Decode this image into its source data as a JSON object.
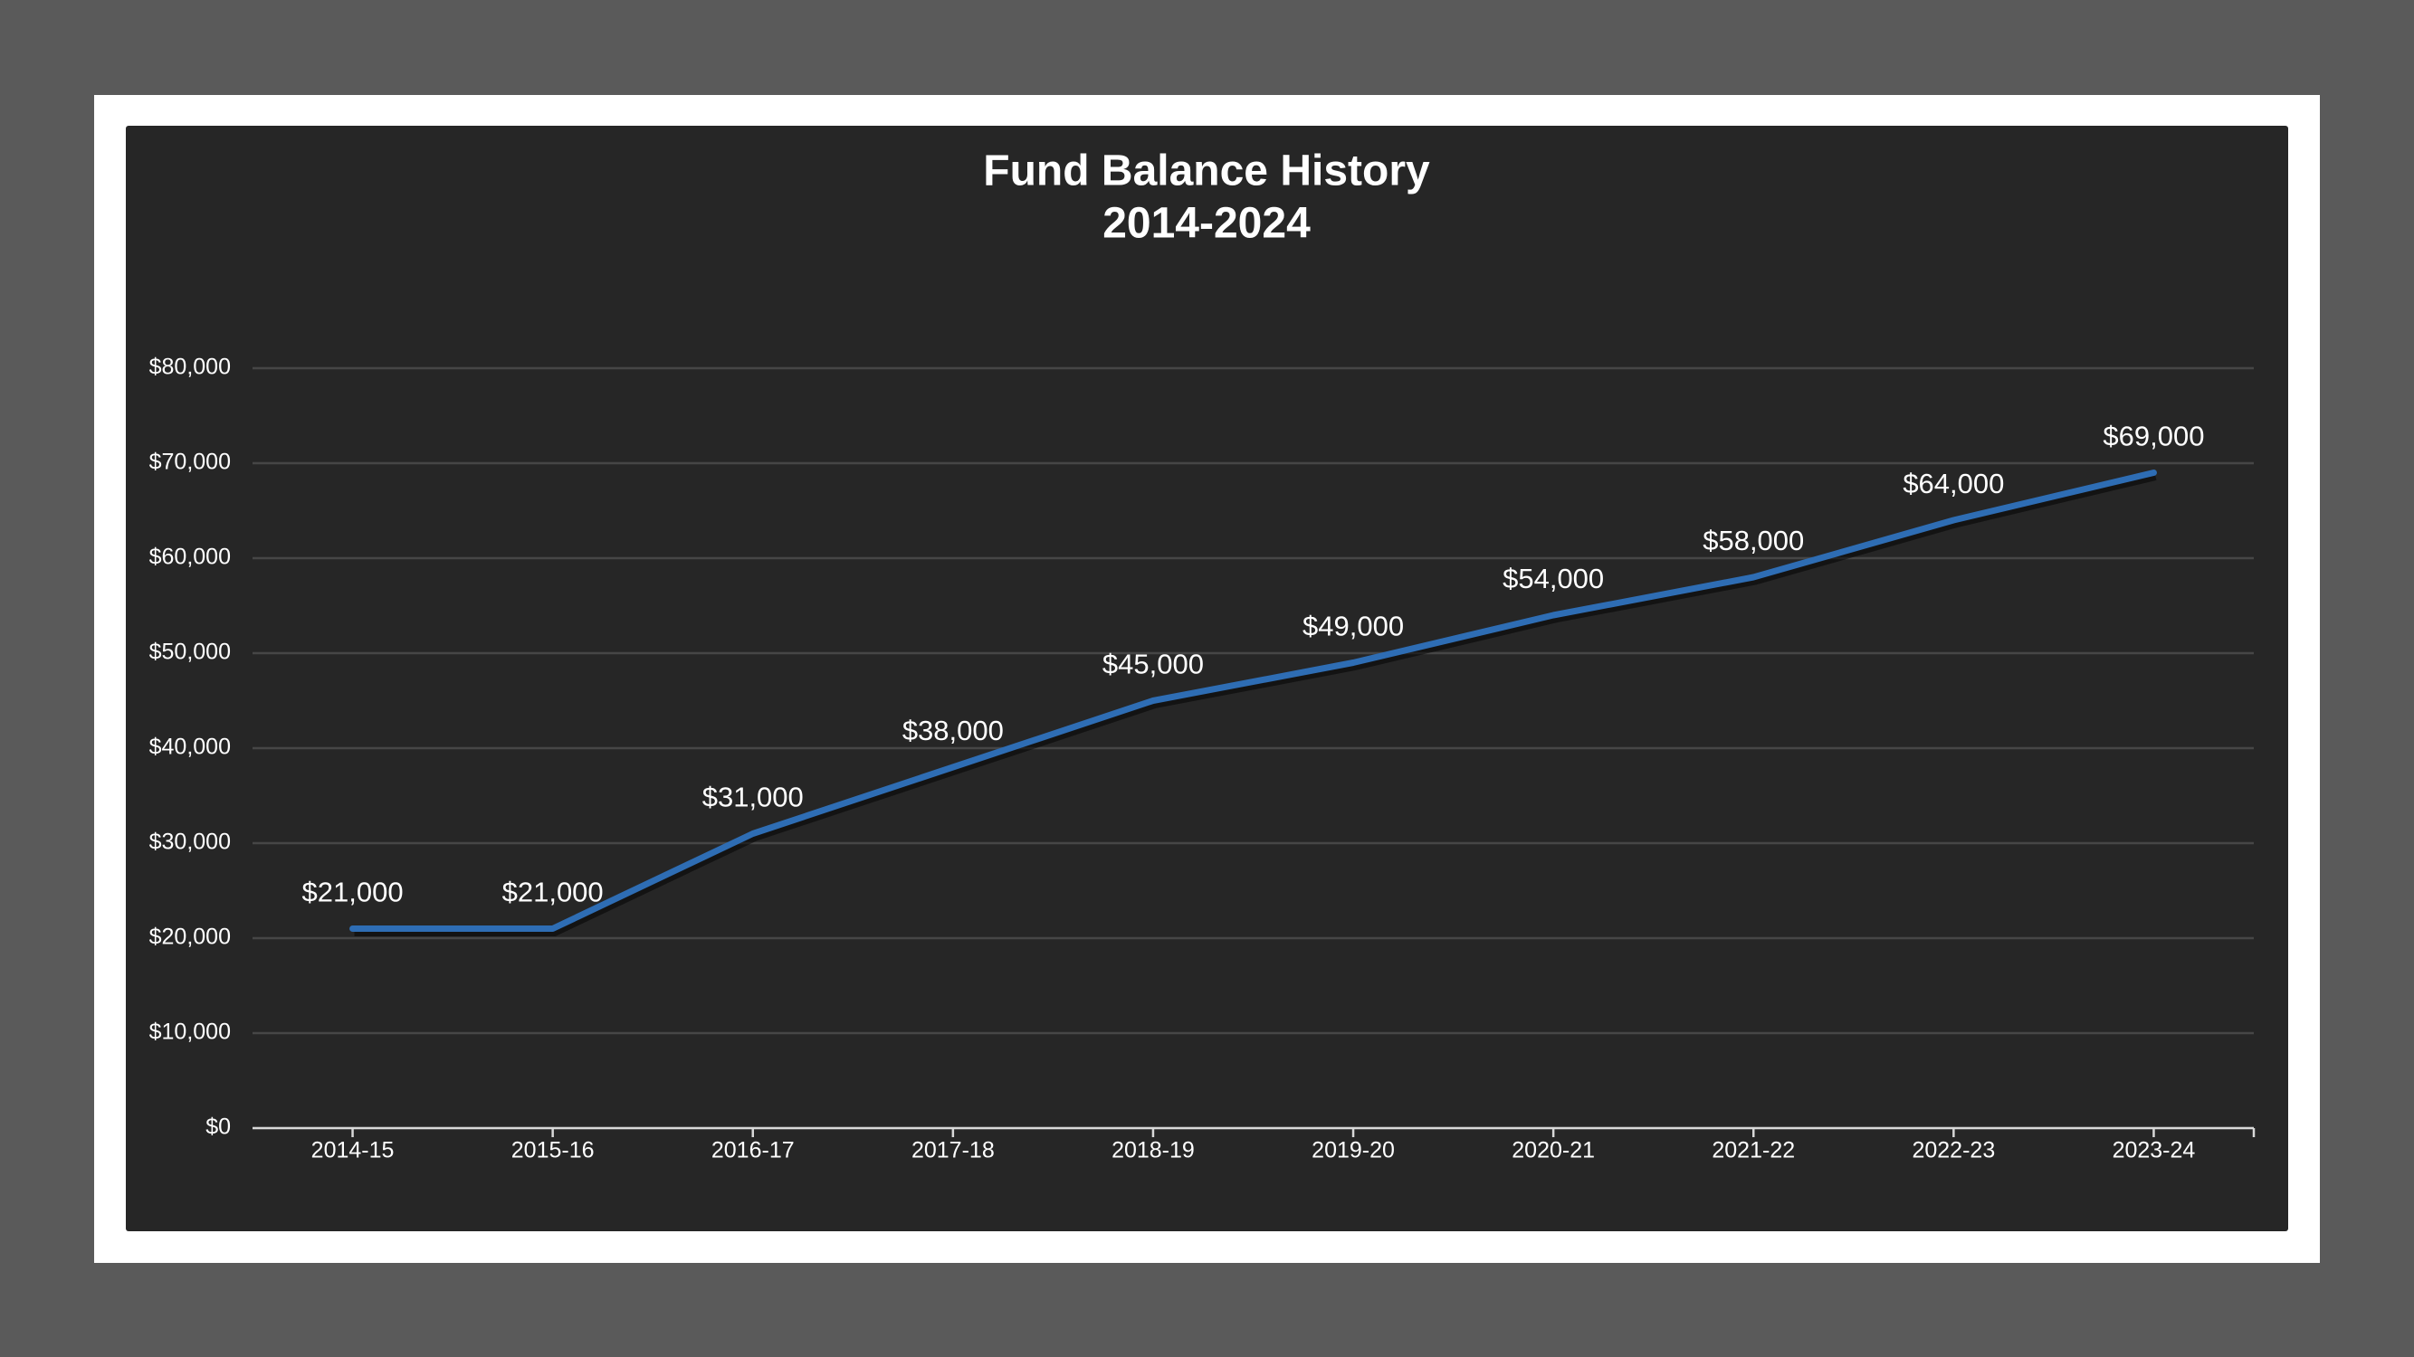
{
  "chart_data": {
    "type": "line",
    "title": "Fund Balance History",
    "subtitle": "2014-2024",
    "categories": [
      "2014-15",
      "2015-16",
      "2016-17",
      "2017-18",
      "2018-19",
      "2019-20",
      "2020-21",
      "2021-22",
      "2022-23",
      "2023-24"
    ],
    "series": [
      {
        "color": "#2e6db4",
        "values": [
          21000,
          21000,
          31000,
          38000,
          45000,
          49000,
          54000,
          58000,
          64000,
          69000
        ],
        "value_labels": [
          "$21,000",
          "$21,000",
          "$31,000",
          "$38,000",
          "$45,000",
          "$49,000",
          "$54,000",
          "$58,000",
          "$64,000",
          "$69,000"
        ]
      }
    ],
    "ylim": [
      0,
      80000
    ],
    "yticks": [
      {
        "value": 0,
        "label": "$0"
      },
      {
        "value": 10000,
        "label": "$10,000"
      },
      {
        "value": 20000,
        "label": "$20,000"
      },
      {
        "value": 30000,
        "label": "$30,000"
      },
      {
        "value": 40000,
        "label": "$40,000"
      },
      {
        "value": 50000,
        "label": "$50,000"
      },
      {
        "value": 60000,
        "label": "$60,000"
      },
      {
        "value": 70000,
        "label": "$70,000"
      },
      {
        "value": 80000,
        "label": "$80,000"
      }
    ],
    "grid": true
  }
}
